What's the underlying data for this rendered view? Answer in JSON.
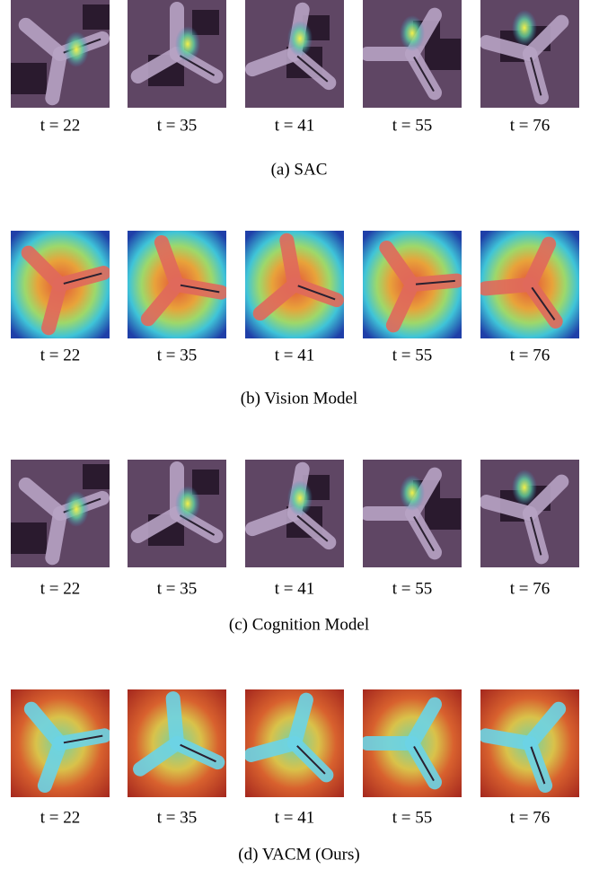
{
  "panels": [
    {
      "caption": "(a) SAC",
      "frames": [
        "t = 22",
        "t = 35",
        "t = 41",
        "t = 55",
        "t = 76"
      ]
    },
    {
      "caption": "(b) Vision Model",
      "frames": [
        "t = 22",
        "t = 35",
        "t = 41",
        "t = 55",
        "t = 76"
      ]
    },
    {
      "caption": "(c) Cognition Model",
      "frames": [
        "t = 22",
        "t = 35",
        "t = 41",
        "t = 55",
        "t = 76"
      ]
    },
    {
      "caption": "(d) VACM (Ours)",
      "frames": [
        "t = 22",
        "t = 35",
        "t = 41",
        "t = 55",
        "t = 76"
      ]
    }
  ]
}
